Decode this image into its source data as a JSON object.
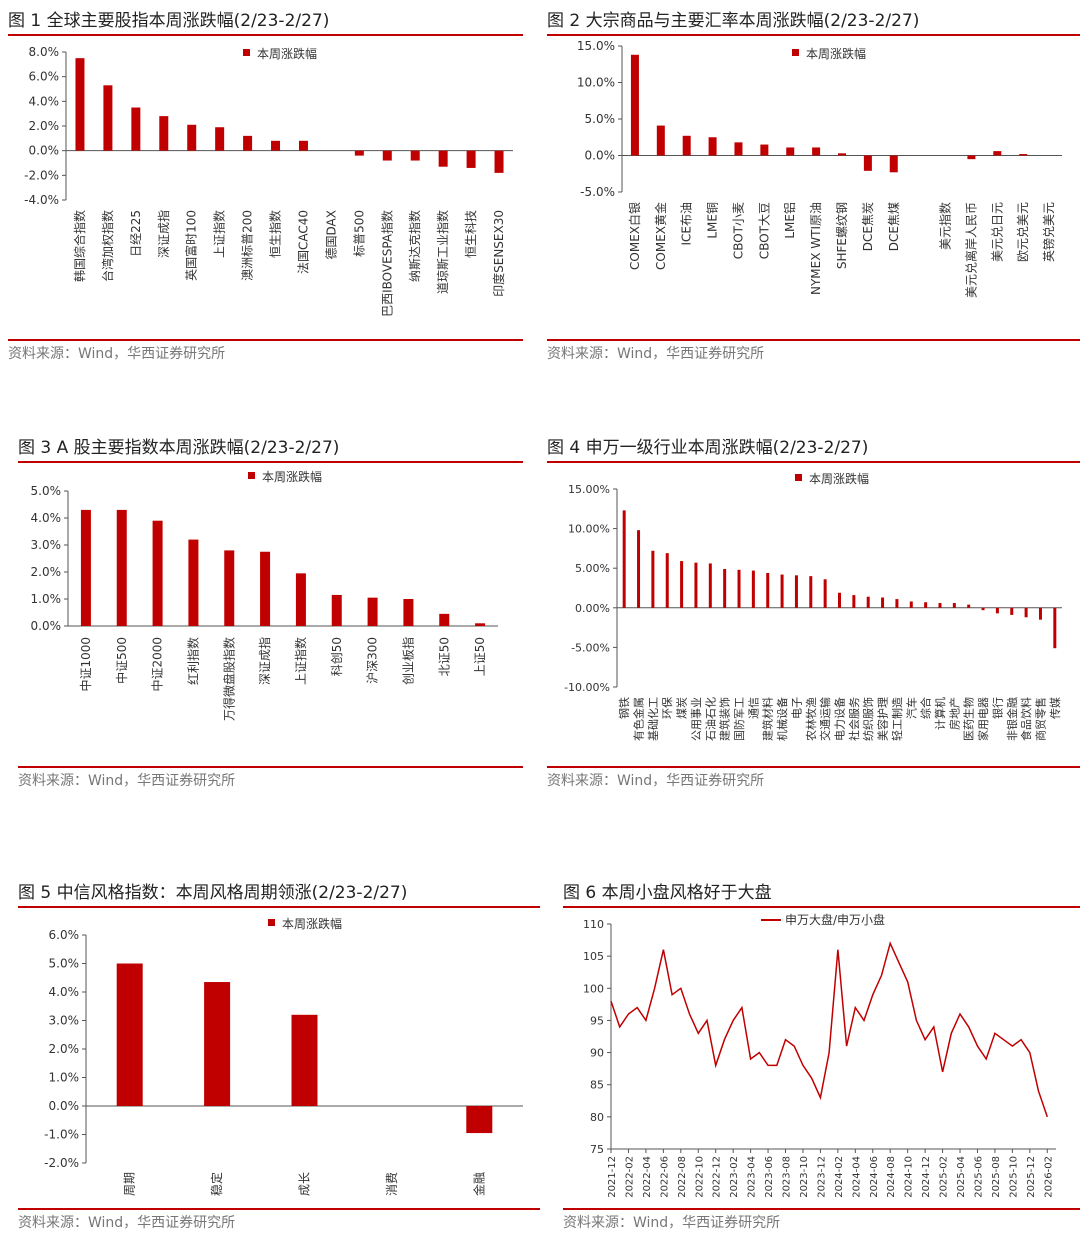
{
  "source_text": "资料来源：Wind，华西证券研究所",
  "charts": [
    {
      "title": "图 1  全球主要股指本周涨跌幅(2/23-2/27)",
      "chart_data": {
        "type": "bar",
        "legend": "本周涨跌幅",
        "legend_position": "top-center",
        "categories": [
          "韩国综合指数",
          "台湾加权指数",
          "日经225",
          "深证成指",
          "英国富时100",
          "上证指数",
          "澳洲标普200",
          "恒生指数",
          "法国CAC40",
          "德国DAX",
          "标普500",
          "巴西IBOVESPA指数",
          "纳斯达克指数",
          "道琼斯工业指数",
          "恒生科技",
          "印度SENSEX30"
        ],
        "values": [
          7.5,
          5.3,
          3.5,
          2.8,
          2.1,
          1.9,
          1.2,
          0.8,
          0.8,
          0.0,
          -0.4,
          -0.8,
          -0.8,
          -1.3,
          -1.4,
          -1.8
        ],
        "ylim": [
          -4,
          8
        ],
        "yticks": [
          "8.0%",
          "6.0%",
          "4.0%",
          "2.0%",
          "0.0%",
          "-2.0%",
          "-4.0%"
        ],
        "color": "#c00000"
      }
    },
    {
      "title": "图 2  大宗商品与主要汇率本周涨跌幅(2/23-2/27)",
      "chart_data": {
        "type": "bar",
        "legend": "本周涨跌幅",
        "legend_position": "top-center",
        "categories": [
          "COMEX白银",
          "COMEX黄金",
          "ICE布油",
          "LME铜",
          "CBOT小麦",
          "CBOT大豆",
          "LME铝",
          "NYMEX WTI原油",
          "SHFE螺纹钢",
          "DCE焦炭",
          "DCE焦煤",
          "",
          "美元指数",
          "美元兑离岸人民币",
          "美元兑日元",
          "欧元兑美元",
          "英镑兑美元"
        ],
        "values": [
          13.8,
          4.1,
          2.7,
          2.5,
          1.8,
          1.5,
          1.1,
          1.1,
          0.3,
          -2.1,
          -2.3,
          0.0,
          0.0,
          -0.5,
          0.6,
          0.2,
          0.0
        ],
        "ylim": [
          -5,
          15
        ],
        "yticks": [
          "15.0%",
          "10.0%",
          "5.0%",
          "0.0%",
          "-5.0%"
        ],
        "color": "#c00000"
      }
    },
    {
      "title": "图 3 A 股主要指数本周涨跌幅(2/23-2/27)",
      "chart_data": {
        "type": "bar",
        "legend": "本周涨跌幅",
        "legend_position": "top-center",
        "categories": [
          "中证1000",
          "中证500",
          "中证2000",
          "红利指数",
          "万得微盘股指数",
          "深证成指",
          "上证指数",
          "科创50",
          "沪深300",
          "创业板指",
          "北证50",
          "上证50"
        ],
        "values": [
          4.3,
          4.3,
          3.9,
          3.2,
          2.8,
          2.75,
          1.95,
          1.15,
          1.05,
          1.0,
          0.45,
          0.1
        ],
        "ylim": [
          0,
          5
        ],
        "yticks": [
          "5.0%",
          "4.0%",
          "3.0%",
          "2.0%",
          "1.0%",
          "0.0%"
        ],
        "color": "#c00000"
      }
    },
    {
      "title": "图 4  申万一级行业本周涨跌幅(2/23-2/27)",
      "chart_data": {
        "type": "bar",
        "legend": "本周涨跌幅",
        "legend_position": "top-center",
        "categories": [
          "钢铁",
          "有色金属",
          "基础化工",
          "环保",
          "煤炭",
          "公用事业",
          "石油石化",
          "建筑装饰",
          "国防军工",
          "通信",
          "建筑材料",
          "机械设备",
          "电子",
          "农林牧渔",
          "交通运输",
          "电力设备",
          "社会服务",
          "纺织服饰",
          "美容护理",
          "轻工制造",
          "汽车",
          "综合",
          "计算机",
          "房地产",
          "医药生物",
          "家用电器",
          "银行",
          "非银金融",
          "食品饮料",
          "商贸零售",
          "传媒"
        ],
        "values": [
          12.3,
          9.8,
          7.2,
          6.9,
          5.9,
          5.7,
          5.6,
          4.9,
          4.8,
          4.7,
          4.4,
          4.2,
          4.1,
          4.0,
          3.6,
          1.9,
          1.6,
          1.4,
          1.3,
          1.1,
          0.8,
          0.7,
          0.6,
          0.6,
          0.4,
          -0.3,
          -0.7,
          -0.9,
          -1.2,
          -1.5,
          -5.1
        ],
        "ylim": [
          -10,
          15
        ],
        "yticks": [
          "15.00%",
          "10.00%",
          "5.00%",
          "0.00%",
          "-5.00%",
          "-10.00%"
        ],
        "color": "#c00000"
      }
    },
    {
      "title": "图 5  中信风格指数：本周风格周期领涨(2/23-2/27)",
      "chart_data": {
        "type": "bar",
        "legend": "本周涨跌幅",
        "legend_position": "top-center",
        "categories": [
          "周期",
          "稳定",
          "成长",
          "消费",
          "金融"
        ],
        "values": [
          5.0,
          4.35,
          3.2,
          0.0,
          -0.95
        ],
        "ylim": [
          -2,
          6
        ],
        "yticks": [
          "6.0%",
          "5.0%",
          "4.0%",
          "3.0%",
          "2.0%",
          "1.0%",
          "0.0%",
          "-1.0%",
          "-2.0%"
        ],
        "color": "#c00000"
      }
    },
    {
      "title": "图 6  本周小盘风格好于大盘",
      "chart_data": {
        "type": "line",
        "legend": "申万大盘/申万小盘",
        "legend_position": "top-center",
        "x_ticks": [
          "2021-12",
          "2022-02",
          "2022-04",
          "2022-06",
          "2022-08",
          "2022-10",
          "2022-12",
          "2023-02",
          "2023-04",
          "2023-06",
          "2023-08",
          "2023-10",
          "2023-12",
          "2024-02",
          "2024-04",
          "2024-06",
          "2024-08",
          "2024-10",
          "2024-12",
          "2025-02",
          "2025-04",
          "2025-06",
          "2025-08",
          "2025-10",
          "2025-12",
          "2026-02"
        ],
        "ylim": [
          75,
          110
        ],
        "yticks": [
          "110",
          "105",
          "100",
          "95",
          "90",
          "85",
          "80",
          "75"
        ],
        "x": [
          "2021-12",
          "2022-01",
          "2022-02",
          "2022-03",
          "2022-04",
          "2022-05",
          "2022-06",
          "2022-07",
          "2022-08",
          "2022-09",
          "2022-10",
          "2022-11",
          "2022-12",
          "2023-01",
          "2023-02",
          "2023-03",
          "2023-04",
          "2023-05",
          "2023-06",
          "2023-07",
          "2023-08",
          "2023-09",
          "2023-10",
          "2023-11",
          "2023-12",
          "2024-01",
          "2024-02",
          "2024-03",
          "2024-04",
          "2024-05",
          "2024-06",
          "2024-07",
          "2024-08",
          "2024-09",
          "2024-10",
          "2024-11",
          "2024-12",
          "2025-01",
          "2025-02",
          "2025-03",
          "2025-04",
          "2025-05",
          "2025-06",
          "2025-07",
          "2025-08",
          "2025-09",
          "2025-10",
          "2025-11",
          "2025-12",
          "2026-01",
          "2026-02"
        ],
        "values": [
          98,
          94,
          96,
          97,
          95,
          100,
          106,
          99,
          100,
          96,
          93,
          95,
          88,
          92,
          95,
          97,
          89,
          90,
          88,
          88,
          92,
          91,
          88,
          86,
          83,
          90,
          106,
          91,
          97,
          95,
          99,
          102,
          107,
          104,
          101,
          95,
          92,
          94,
          87,
          93,
          96,
          94,
          91,
          89,
          93,
          92,
          91,
          92,
          90,
          84,
          80
        ],
        "color": "#c00000"
      }
    }
  ]
}
